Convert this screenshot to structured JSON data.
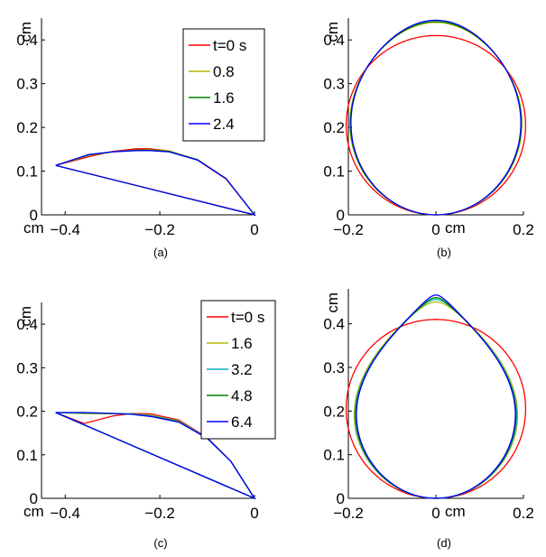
{
  "chart_data": [
    {
      "id": "a",
      "caption": "(a)",
      "type": "line",
      "xlim": [
        -0.45,
        0
      ],
      "ylim": [
        0,
        0.45
      ],
      "xticks": [
        "-0.4",
        "-0.2",
        "0"
      ],
      "yticks": [
        "0",
        "0.1",
        "0.2",
        "0.3",
        "0.4"
      ],
      "xtick_values": [
        -0.4,
        -0.2,
        0
      ],
      "ytick_values": [
        0,
        0.1,
        0.2,
        0.3,
        0.4
      ],
      "xunit": "cm",
      "yunit": "cm",
      "legend": {
        "title": "",
        "entries": [
          "t=0 s",
          "0.8",
          "1.6",
          "2.4"
        ],
        "placement": "top-right"
      },
      "series": [
        {
          "name": "t=0 s",
          "color": "#ff0000",
          "shape": "cap",
          "x": [
            -0.42,
            -0.35,
            -0.3,
            -0.25,
            -0.22,
            -0.18,
            -0.12,
            -0.06,
            0
          ],
          "y": [
            0.113,
            0.133,
            0.145,
            0.151,
            0.151,
            0.146,
            0.125,
            0.082,
            0
          ]
        },
        {
          "name": "0.8",
          "color": "#b5b800",
          "shape": "cap",
          "x": [
            -0.42,
            -0.35,
            -0.3,
            -0.25,
            -0.22,
            -0.18,
            -0.12,
            -0.06,
            0
          ],
          "y": [
            0.113,
            0.136,
            0.144,
            0.148,
            0.149,
            0.146,
            0.126,
            0.083,
            0
          ]
        },
        {
          "name": "1.6",
          "color": "#008000",
          "shape": "cap",
          "x": [
            -0.42,
            -0.35,
            -0.3,
            -0.25,
            -0.22,
            -0.18,
            -0.12,
            -0.06,
            0
          ],
          "y": [
            0.113,
            0.137,
            0.144,
            0.148,
            0.148,
            0.145,
            0.126,
            0.083,
            0
          ]
        },
        {
          "name": "2.4",
          "color": "#0000ff",
          "shape": "cap",
          "x": [
            -0.42,
            -0.35,
            -0.3,
            -0.25,
            -0.22,
            -0.18,
            -0.12,
            -0.06,
            0
          ],
          "y": [
            0.113,
            0.138,
            0.144,
            0.147,
            0.147,
            0.144,
            0.125,
            0.083,
            0
          ]
        }
      ]
    },
    {
      "id": "b",
      "caption": "(b)",
      "type": "line",
      "xlim": [
        -0.2,
        0.2
      ],
      "ylim": [
        0,
        0.45
      ],
      "xticks": [
        "-0.2",
        "0",
        "0.2"
      ],
      "yticks": [
        "0",
        "0.1",
        "0.2",
        "0.3",
        "0.4"
      ],
      "xtick_values": [
        -0.2,
        0,
        0.2
      ],
      "ytick_values": [
        0,
        0.1,
        0.2,
        0.3,
        0.4
      ],
      "xunit": "cm",
      "yunit": "cm",
      "series": [
        {
          "name": "t=0 s",
          "color": "#ff0000",
          "shape": "drop",
          "height": 0.41,
          "halfwidth": 0.205,
          "peak": 0.0
        },
        {
          "name": "0.8",
          "color": "#b5b800",
          "shape": "drop",
          "height": 0.44,
          "halfwidth": 0.2,
          "peak": 0.15
        },
        {
          "name": "1.6",
          "color": "#008000",
          "shape": "drop",
          "height": 0.442,
          "halfwidth": 0.199,
          "peak": 0.16
        },
        {
          "name": "2.4",
          "color": "#0000ff",
          "shape": "drop",
          "height": 0.445,
          "halfwidth": 0.198,
          "peak": 0.17
        }
      ]
    },
    {
      "id": "c",
      "caption": "(c)",
      "type": "line",
      "xlim": [
        -0.45,
        0
      ],
      "ylim": [
        0,
        0.45
      ],
      "xticks": [
        "-0.4",
        "-0.2",
        "0"
      ],
      "yticks": [
        "0",
        "0.1",
        "0.2",
        "0.3",
        "0.4"
      ],
      "xtick_values": [
        -0.4,
        -0.2,
        0
      ],
      "ytick_values": [
        0,
        0.1,
        0.2,
        0.3,
        0.4
      ],
      "xunit": "cm",
      "yunit": "cm",
      "legend": {
        "title": "",
        "entries": [
          "t=0 s",
          "1.6",
          "3.2",
          "4.8",
          "6.4"
        ],
        "placement": "top-right"
      },
      "series": [
        {
          "name": "t=0 s",
          "color": "#ff0000",
          "shape": "cap",
          "x": [
            -0.42,
            -0.36,
            -0.3,
            -0.26,
            -0.22,
            -0.16,
            -0.1,
            -0.05,
            0
          ],
          "y": [
            0.197,
            0.172,
            0.189,
            0.195,
            0.194,
            0.18,
            0.14,
            0.085,
            0
          ]
        },
        {
          "name": "1.6",
          "color": "#b5b800",
          "shape": "cap",
          "x": [
            -0.42,
            -0.36,
            -0.3,
            -0.26,
            -0.22,
            -0.16,
            -0.1,
            -0.05,
            0
          ],
          "y": [
            0.197,
            0.194,
            0.194,
            0.194,
            0.191,
            0.178,
            0.139,
            0.085,
            0
          ]
        },
        {
          "name": "3.2",
          "color": "#00b0c0",
          "shape": "cap",
          "x": [
            -0.42,
            -0.36,
            -0.3,
            -0.26,
            -0.22,
            -0.16,
            -0.1,
            -0.05,
            0
          ],
          "y": [
            0.197,
            0.196,
            0.195,
            0.194,
            0.19,
            0.177,
            0.139,
            0.085,
            0
          ]
        },
        {
          "name": "4.8",
          "color": "#008000",
          "shape": "cap",
          "x": [
            -0.42,
            -0.36,
            -0.3,
            -0.26,
            -0.22,
            -0.16,
            -0.1,
            -0.05,
            0
          ],
          "y": [
            0.197,
            0.197,
            0.195,
            0.193,
            0.189,
            0.176,
            0.138,
            0.085,
            0
          ]
        },
        {
          "name": "6.4",
          "color": "#0000ff",
          "shape": "cap",
          "x": [
            -0.42,
            -0.36,
            -0.3,
            -0.26,
            -0.22,
            -0.16,
            -0.1,
            -0.05,
            0
          ],
          "y": [
            0.197,
            0.197,
            0.195,
            0.193,
            0.188,
            0.175,
            0.138,
            0.085,
            0
          ]
        }
      ]
    },
    {
      "id": "d",
      "caption": "(d)",
      "type": "line",
      "xlim": [
        -0.2,
        0.2
      ],
      "ylim": [
        0,
        0.48
      ],
      "xticks": [
        "-0.2",
        "0",
        "0.2"
      ],
      "yticks": [
        "0",
        "0.1",
        "0.2",
        "0.3",
        "0.4"
      ],
      "xtick_values": [
        -0.2,
        0,
        0.2
      ],
      "ytick_values": [
        0,
        0.1,
        0.2,
        0.3,
        0.4
      ],
      "xunit": "cm",
      "yunit": "cm",
      "series": [
        {
          "name": "t=0 s",
          "color": "#ff0000",
          "shape": "drop",
          "height": 0.41,
          "halfwidth": 0.205,
          "peak": 0.0
        },
        {
          "name": "1.6",
          "color": "#b5b800",
          "shape": "drop",
          "height": 0.45,
          "halfwidth": 0.197,
          "peak": 0.55
        },
        {
          "name": "3.2",
          "color": "#00b0c0",
          "shape": "drop",
          "height": 0.456,
          "halfwidth": 0.196,
          "peak": 0.62
        },
        {
          "name": "4.8",
          "color": "#008000",
          "shape": "drop",
          "height": 0.46,
          "halfwidth": 0.195,
          "peak": 0.66
        },
        {
          "name": "6.4",
          "color": "#0000ff",
          "shape": "drop",
          "height": 0.466,
          "halfwidth": 0.194,
          "peak": 0.7
        }
      ]
    }
  ]
}
